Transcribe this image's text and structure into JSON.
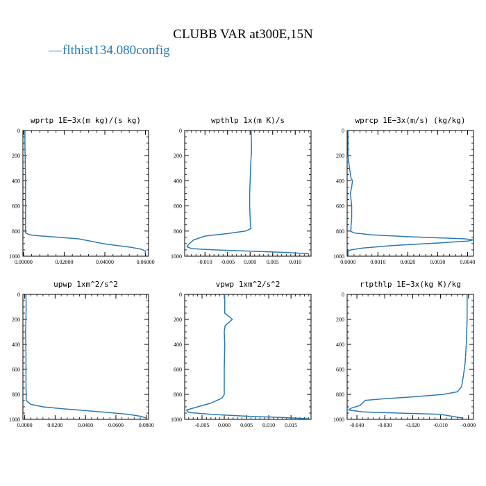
{
  "figure": {
    "title": "CLUBB VAR at300E,15N",
    "legend": {
      "entries": [
        {
          "label": "flthist134.080config",
          "dash": "—",
          "color": "#2a79b3"
        }
      ]
    }
  },
  "chart_data": [
    {
      "type": "line",
      "title": "wprtp  1E−3x(m kg)/(s kg)",
      "xlim": [
        -0.0003,
        0.0615
      ],
      "ylim": [
        1000,
        0
      ],
      "xticks": [
        0.0,
        0.02,
        0.04,
        0.06
      ],
      "xtick_labels": [
        "0.00000",
        "0.02000",
        "0.04000",
        "0.06000"
      ],
      "yticks": [
        0,
        200,
        400,
        600,
        800,
        1000
      ],
      "ytick_labels": [
        "0",
        "200",
        "400",
        "600",
        "800",
        "1000"
      ],
      "series": [
        {
          "color": "#2a79b3",
          "x": [
            0.0007,
            0.0007,
            0.0008,
            0.0009,
            0.001,
            0.001,
            0.001,
            0.001,
            0.001,
            0.001,
            0.0008,
            0.001,
            0.003,
            0.009,
            0.018,
            0.027,
            0.033,
            0.039,
            0.046,
            0.053,
            0.058,
            0.06,
            0.0598
          ],
          "y": [
            0,
            100,
            200,
            300,
            400,
            500,
            600,
            700,
            750,
            780,
            800,
            815,
            830,
            840,
            850,
            862,
            880,
            900,
            915,
            930,
            945,
            960,
            980
          ]
        }
      ]
    },
    {
      "type": "line",
      "title": "wpthlp  1x(m K)/s",
      "xlim": [
        -0.0145,
        0.0135
      ],
      "ylim": [
        1000,
        0
      ],
      "xticks": [
        -0.01,
        -0.005,
        0.0,
        0.005,
        0.01
      ],
      "xtick_labels": [
        "-0.010",
        "-0.005",
        "0.000",
        "0.005",
        "0.010"
      ],
      "yticks": [
        0,
        200,
        400,
        600,
        800,
        1000
      ],
      "ytick_labels": [
        "0",
        "200",
        "400",
        "600",
        "800",
        "1000"
      ],
      "series": [
        {
          "color": "#2a79b3",
          "x": [
            0.0002,
            0.0003,
            0.0003,
            0.0002,
            0.0001,
            0.0,
            -0.0001,
            -0.0001,
            0.0,
            0.0001,
            0.0002,
            -0.001,
            -0.005,
            -0.01,
            -0.0125,
            -0.0135,
            -0.014,
            -0.013,
            -0.008,
            0.0,
            0.008,
            0.013
          ],
          "y": [
            0,
            100,
            170,
            220,
            300,
            400,
            500,
            600,
            700,
            760,
            780,
            800,
            820,
            840,
            870,
            900,
            925,
            940,
            950,
            960,
            970,
            980
          ]
        }
      ]
    },
    {
      "type": "line",
      "title": "wprcp  1E−3x(m/s) (kg/kg)",
      "xlim": [
        -3e-05,
        0.0042
      ],
      "ylim": [
        1000,
        0
      ],
      "xticks": [
        0.0,
        0.001,
        0.002,
        0.003,
        0.004
      ],
      "xtick_labels": [
        "0.0000",
        "0.0010",
        "0.0020",
        "0.0030",
        "0.0040"
      ],
      "yticks": [
        0,
        200,
        400,
        600,
        800,
        1000
      ],
      "ytick_labels": [
        "0",
        "200",
        "400",
        "600",
        "800",
        "1000"
      ],
      "series": [
        {
          "color": "#2a79b3",
          "x": [
            0.0,
            0.0,
            5e-05,
            0.0001,
            0.00015,
            0.00012,
            8e-05,
            0.00012,
            0.00012,
            0.0001,
            0.0001,
            8e-05,
            0.0002,
            0.0008,
            0.002,
            0.0032,
            0.0039,
            0.0042,
            0.004,
            0.003,
            0.0015,
            0.0005,
            0.0001,
            0.0,
            0.0
          ],
          "y": [
            0,
            200,
            300,
            380,
            400,
            450,
            500,
            600,
            700,
            760,
            785,
            800,
            815,
            830,
            845,
            855,
            862,
            870,
            880,
            895,
            915,
            935,
            950,
            960,
            1000
          ]
        }
      ]
    },
    {
      "type": "line",
      "title": "upwp   1xm^2/s^2",
      "xlim": [
        -0.0012,
        0.0815
      ],
      "ylim": [
        1000,
        0
      ],
      "xticks": [
        0.0,
        0.02,
        0.04,
        0.06,
        0.08
      ],
      "xtick_labels": [
        "0.0000",
        "0.0200",
        "0.0400",
        "0.0600",
        "0.0800"
      ],
      "yticks": [
        0,
        200,
        400,
        600,
        800,
        1000
      ],
      "ytick_labels": [
        "0",
        "200",
        "400",
        "600",
        "800",
        "1000"
      ],
      "series": [
        {
          "color": "#2a79b3",
          "x": [
            0.0008,
            0.0009,
            0.0008,
            0.0006,
            0.0007,
            0.0008,
            0.0008,
            0.0008,
            0.001,
            0.004,
            0.012,
            0.025,
            0.04,
            0.055,
            0.068,
            0.076,
            0.08
          ],
          "y": [
            0,
            100,
            200,
            300,
            400,
            500,
            600,
            700,
            850,
            880,
            900,
            915,
            930,
            945,
            960,
            975,
            990
          ]
        }
      ]
    },
    {
      "type": "line",
      "title": "vpwp   1xm^2/s^2",
      "xlim": [
        -0.0089,
        0.0195
      ],
      "ylim": [
        1000,
        0
      ],
      "xticks": [
        -0.005,
        0.0,
        0.005,
        0.01,
        0.015
      ],
      "xtick_labels": [
        "-0.005",
        "0.000",
        "0.005",
        "0.010",
        "0.015"
      ],
      "yticks": [
        0,
        200,
        400,
        600,
        800,
        1000
      ],
      "ytick_labels": [
        "0",
        "200",
        "400",
        "600",
        "800",
        "1000"
      ],
      "series": [
        {
          "color": "#2a79b3",
          "x": [
            0.0001,
            0.0001,
            0.0001,
            0.0012,
            0.0018,
            0.0012,
            0.0002,
            0.0,
            0.0001,
            0.0,
            0.0,
            -0.0005,
            -0.003,
            -0.006,
            -0.0085,
            -0.008,
            -0.003,
            0.005,
            0.013,
            0.019
          ],
          "y": [
            0,
            100,
            150,
            180,
            200,
            220,
            250,
            300,
            400,
            600,
            800,
            830,
            870,
            900,
            925,
            945,
            960,
            975,
            985,
            995
          ]
        }
      ]
    },
    {
      "type": "line",
      "title": "rtpthlp   1E−3x(kg K)/kg",
      "xlim": [
        -0.0435,
        0.0018
      ],
      "ylim": [
        1000,
        0
      ],
      "xticks": [
        -0.04,
        -0.03,
        -0.02,
        -0.01,
        0.0
      ],
      "xtick_labels": [
        "-0.040",
        "-0.030",
        "-0.020",
        "-0.010",
        "-0.000"
      ],
      "yticks": [
        0,
        200,
        400,
        600,
        800,
        1000
      ],
      "ytick_labels": [
        "0",
        "200",
        "400",
        "600",
        "800",
        "1000"
      ],
      "series": [
        {
          "color": "#2a79b3",
          "x": [
            -0.0005,
            -0.0005,
            -0.0008,
            -0.0012,
            -0.0018,
            -0.0025,
            -0.004,
            -0.009,
            -0.02,
            -0.03,
            -0.037,
            -0.038,
            -0.039,
            -0.042,
            -0.043,
            -0.038,
            -0.025,
            -0.01,
            -0.002
          ],
          "y": [
            0,
            200,
            400,
            550,
            650,
            740,
            780,
            800,
            820,
            835,
            848,
            870,
            890,
            910,
            925,
            940,
            950,
            960,
            990
          ]
        }
      ]
    }
  ]
}
